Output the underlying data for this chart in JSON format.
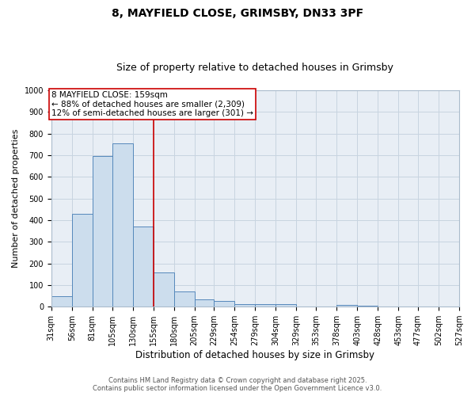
{
  "title1": "8, MAYFIELD CLOSE, GRIMSBY, DN33 3PF",
  "title2": "Size of property relative to detached houses in Grimsby",
  "xlabel": "Distribution of detached houses by size in Grimsby",
  "ylabel": "Number of detached properties",
  "bin_edges": [
    31,
    56,
    81,
    105,
    130,
    155,
    180,
    205,
    229,
    254,
    279,
    304,
    329,
    353,
    378,
    403,
    428,
    453,
    477,
    502,
    527
  ],
  "bar_heights": [
    50,
    430,
    695,
    755,
    370,
    160,
    70,
    35,
    25,
    10,
    10,
    10,
    0,
    0,
    8,
    5,
    0,
    0,
    0,
    0
  ],
  "bar_color": "#ccdded",
  "bar_edge_color": "#5588bb",
  "vline_x": 155,
  "vline_color": "#cc0000",
  "ylim": [
    0,
    1000
  ],
  "yticks": [
    0,
    100,
    200,
    300,
    400,
    500,
    600,
    700,
    800,
    900,
    1000
  ],
  "annotation_text": "8 MAYFIELD CLOSE: 159sqm\n← 88% of detached houses are smaller (2,309)\n12% of semi-detached houses are larger (301) →",
  "annotation_box_color": "#ffffff",
  "annotation_border_color": "#cc0000",
  "grid_color": "#c8d4e0",
  "background_color": "#e8eef5",
  "fig_background": "#ffffff",
  "footer1": "Contains HM Land Registry data © Crown copyright and database right 2025.",
  "footer2": "Contains public sector information licensed under the Open Government Licence v3.0.",
  "title1_fontsize": 10,
  "title2_fontsize": 9,
  "tick_fontsize": 7,
  "xlabel_fontsize": 8.5,
  "ylabel_fontsize": 8,
  "annotation_fontsize": 7.5,
  "footer_fontsize": 6
}
